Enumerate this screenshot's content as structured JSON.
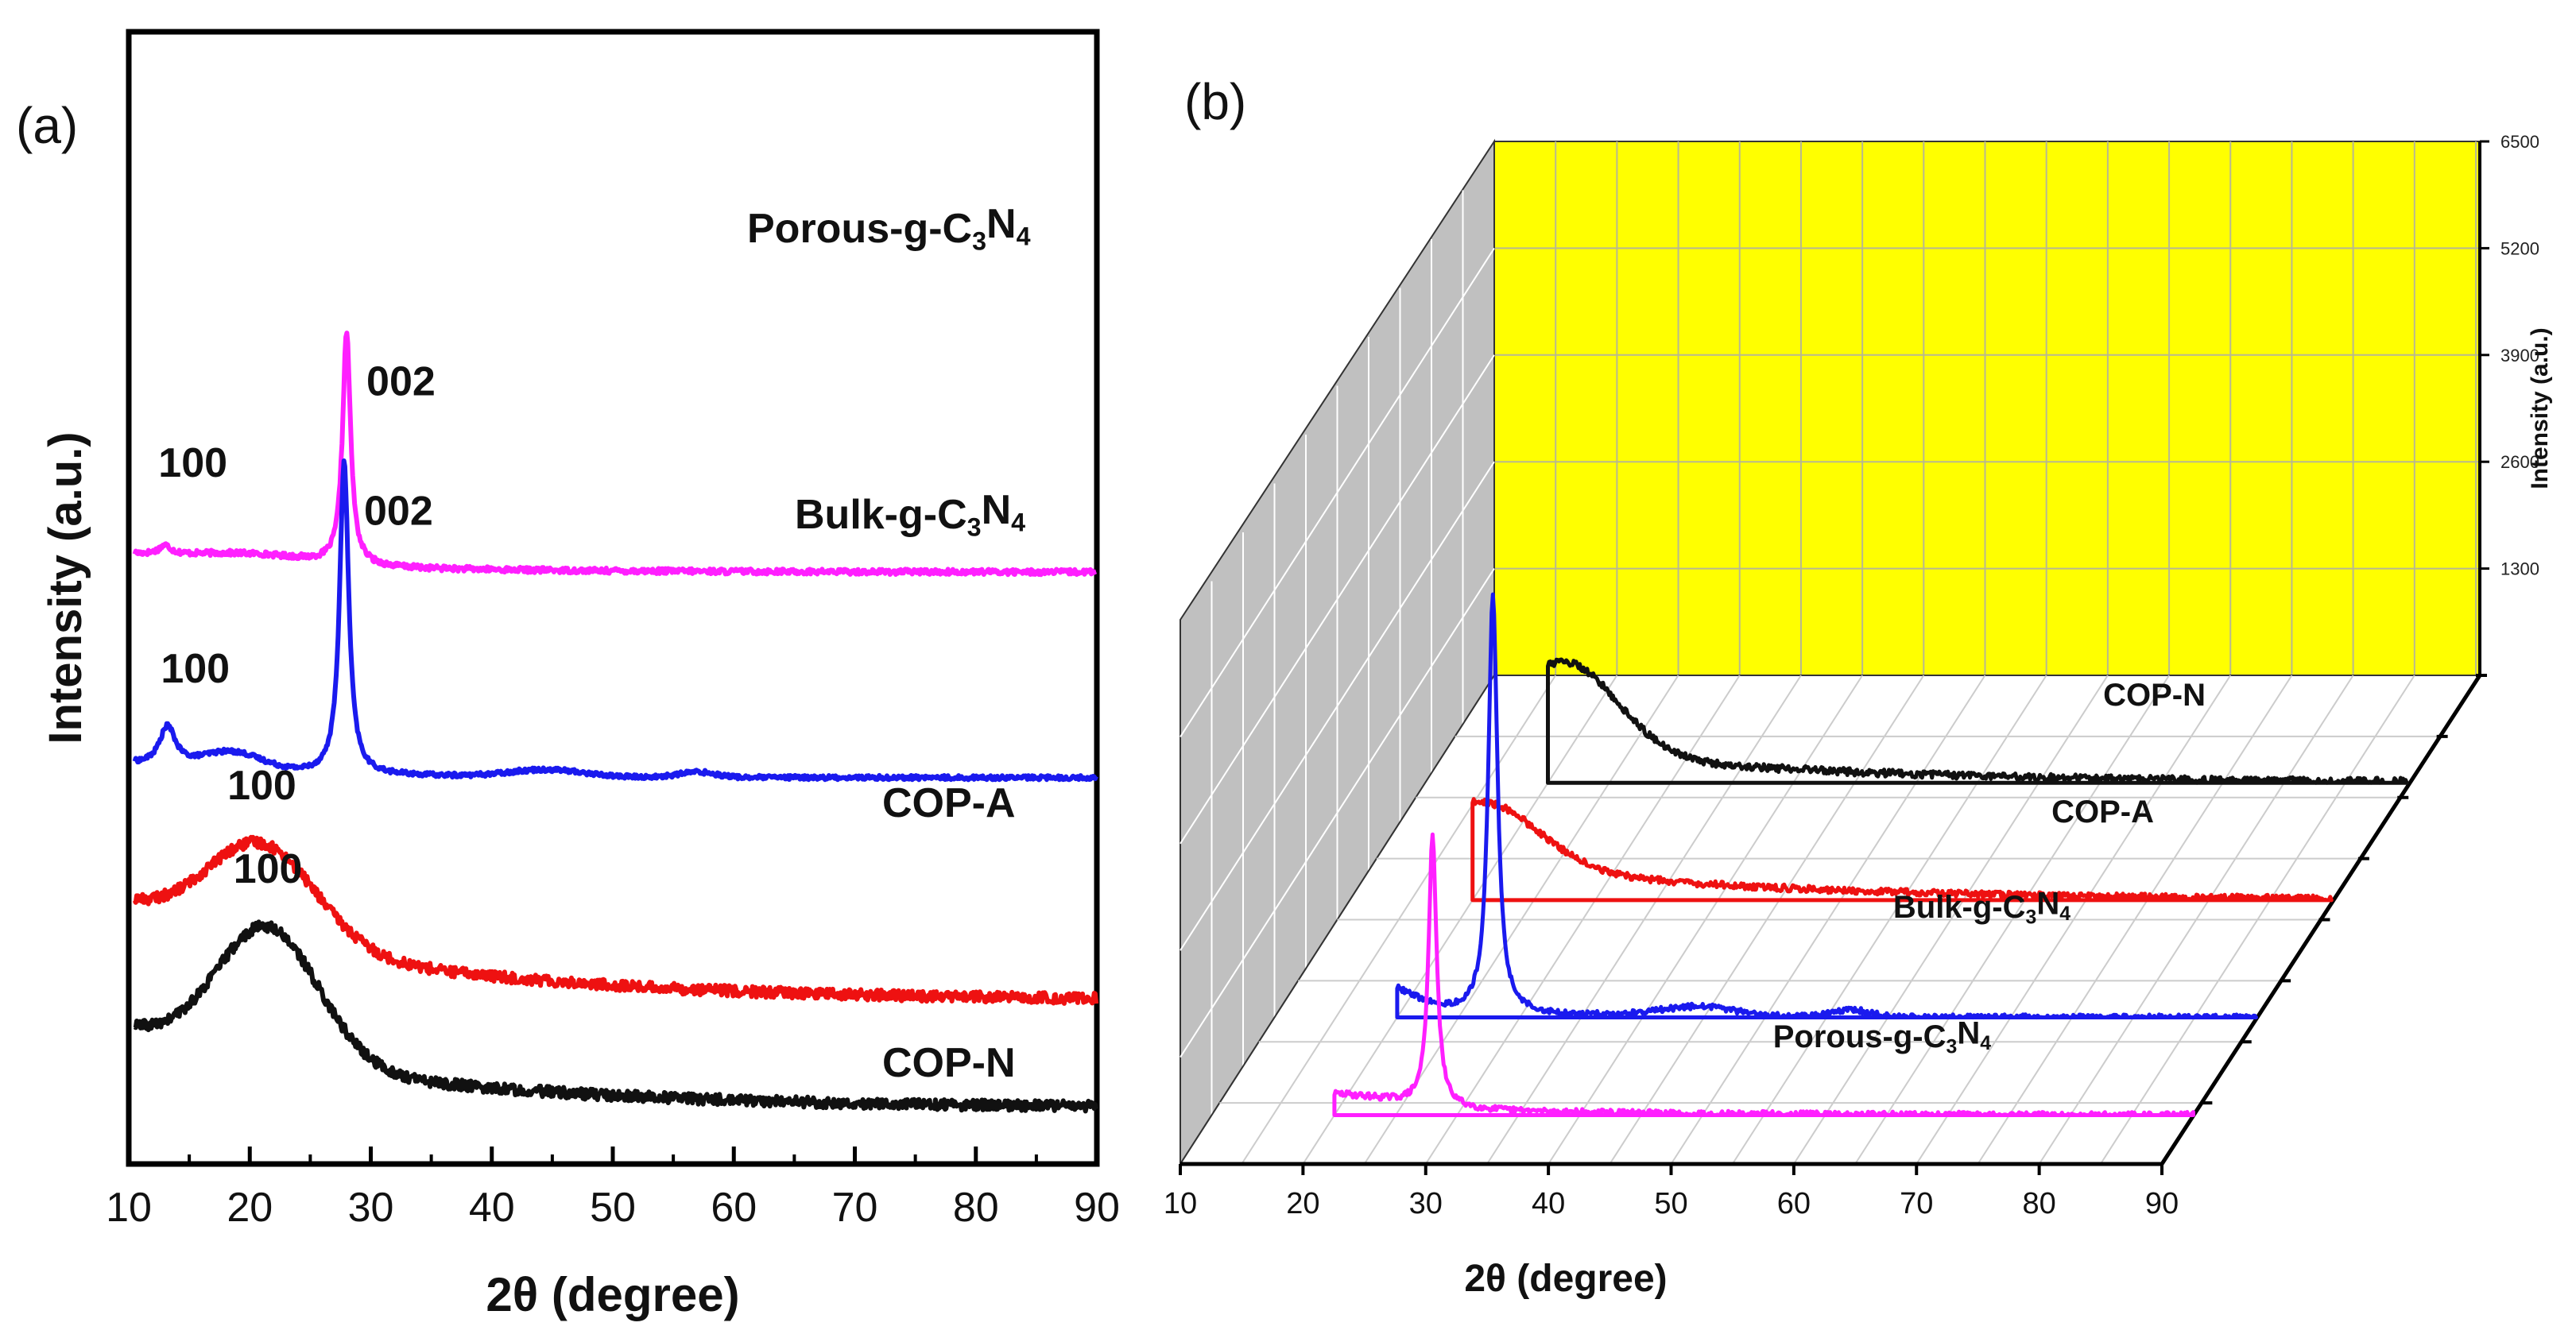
{
  "chart_data": [
    {
      "panel": "(a)",
      "type": "line",
      "xlabel": "2θ (degree)",
      "ylabel": "Intensity (a.u.)",
      "xlim": [
        10,
        90
      ],
      "xticks": [
        10,
        20,
        30,
        40,
        50,
        60,
        70,
        80,
        90
      ],
      "y_ticks_shown": false,
      "grid": false,
      "legend": "labels beside curves (right)",
      "series": [
        {
          "name": "Porous-g-C3N4",
          "label_parts": [
            "Porous-g-C",
            "3",
            "N",
            "4"
          ],
          "color": "#ff1fff",
          "offset": 3.0,
          "peaks": [
            {
              "x": 28.0,
              "height": 1.3,
              "width": 0.4
            },
            {
              "x": 13.0,
              "height": 0.05,
              "width": 0.6
            }
          ],
          "humps": [
            {
              "x": 20,
              "height": 0.05,
              "width": 5
            }
          ],
          "baseline": {
            "start": 0.1,
            "end": 0.0,
            "decay": 15
          },
          "noise": 0.015,
          "annotations": [
            {
              "x": 13.0,
              "text": "100"
            },
            {
              "x": 28.0,
              "text": "002"
            }
          ]
        },
        {
          "name": "Bulk-g-C3N4",
          "label_parts": [
            "Bulk-g-C",
            "3",
            "N",
            "4"
          ],
          "color": "#1a1aee",
          "offset": 1.85,
          "peaks": [
            {
              "x": 27.8,
              "height": 1.75,
              "width": 0.45
            },
            {
              "x": 13.2,
              "height": 0.22,
              "width": 0.8
            }
          ],
          "humps": [
            {
              "x": 18.5,
              "height": 0.1,
              "width": 2.5
            },
            {
              "x": 44.5,
              "height": 0.04,
              "width": 3
            },
            {
              "x": 57.0,
              "height": 0.03,
              "width": 1.5
            }
          ],
          "baseline": {
            "start": 0.08,
            "end": 0.0,
            "decay": 12
          },
          "noise": 0.012,
          "annotations": [
            {
              "x": 13.2,
              "text": "100"
            },
            {
              "x": 27.8,
              "text": "002"
            }
          ]
        },
        {
          "name": "COP-A",
          "label_parts": [
            "COP-A"
          ],
          "color": "#ee1111",
          "offset": 0.6,
          "peaks": [],
          "humps": [
            {
              "x": 21.0,
              "height": 0.55,
              "width": 4.5
            }
          ],
          "baseline": {
            "start": 0.55,
            "end": 0.0,
            "decay": 22
          },
          "noise": 0.03,
          "annotations": [
            {
              "x": 21.0,
              "text": "100"
            }
          ]
        },
        {
          "name": "COP-N",
          "label_parts": [
            "COP-N"
          ],
          "color": "#111111",
          "offset": 0.0,
          "peaks": [],
          "humps": [
            {
              "x": 21.5,
              "height": 0.75,
              "width": 4.2
            }
          ],
          "baseline": {
            "start": 0.45,
            "end": 0.0,
            "decay": 22
          },
          "noise": 0.03,
          "annotations": [
            {
              "x": 21.5,
              "text": "100"
            }
          ]
        }
      ]
    },
    {
      "panel": "(b)",
      "type": "line-3d-waterfall",
      "xlabel": "2θ (degree)",
      "zlabel": "Intensity (a.u.)",
      "xlim": [
        10,
        90
      ],
      "xticks": [
        10,
        20,
        30,
        40,
        50,
        60,
        70,
        80,
        90
      ],
      "zlim": [
        0,
        6500
      ],
      "zticks": [
        1300,
        2600,
        3900,
        5200,
        6500
      ],
      "back_wall_color": "#ffff00",
      "side_wall_color": "#c0c0c0",
      "series": [
        {
          "name": "Porous-g-C3N4",
          "label_parts": [
            "Porous-g-C",
            "3",
            "N",
            "4"
          ],
          "color": "#ff1fff",
          "depth": 0
        },
        {
          "name": "Bulk-g-C3N4",
          "label_parts": [
            "Bulk-g-C",
            "3",
            "N",
            "4"
          ],
          "color": "#1a1aee",
          "depth": 1
        },
        {
          "name": "COP-A",
          "label_parts": [
            "COP-A"
          ],
          "color": "#ee1111",
          "depth": 2
        },
        {
          "name": "COP-N",
          "label_parts": [
            "COP-N"
          ],
          "color": "#111111",
          "depth": 3
        }
      ]
    }
  ]
}
